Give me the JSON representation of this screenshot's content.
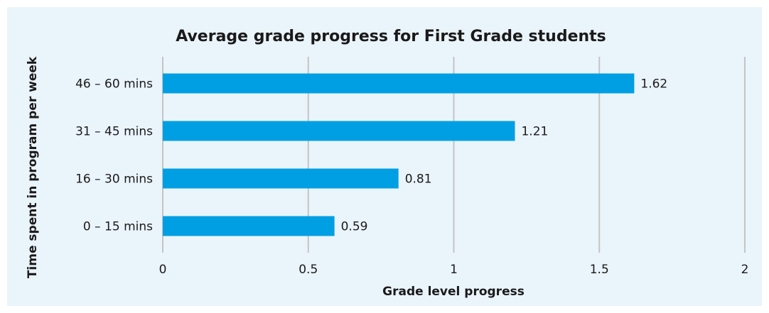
{
  "chart_data": {
    "type": "bar",
    "orientation": "horizontal",
    "title": "Average grade progress for First Grade students",
    "x_label": "Grade level progress",
    "y_label": "Time spent in program per week",
    "categories": [
      "46 – 60 mins",
      "31 – 45 mins",
      "16 – 30 mins",
      "0 – 15 mins"
    ],
    "values": [
      1.62,
      1.21,
      0.81,
      0.59
    ],
    "color": "#009fe3",
    "xlim": [
      0,
      2
    ],
    "xticks": [
      0,
      0.5,
      1,
      1.5,
      2
    ],
    "grid": true
  }
}
